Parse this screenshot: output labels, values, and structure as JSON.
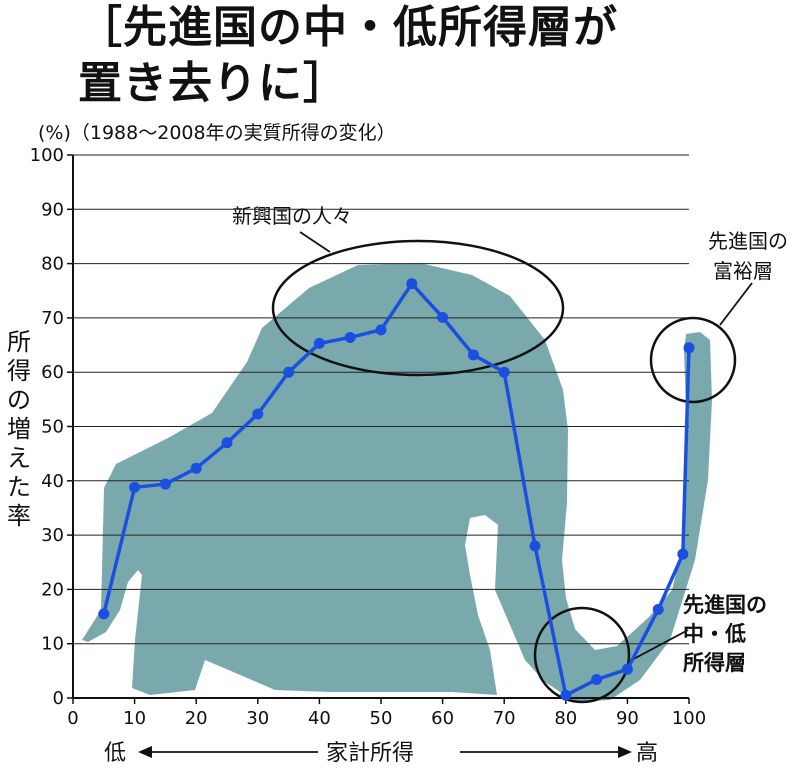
{
  "title_line1": "［先進国の中・低所得層が",
  "title_line2": "置き去りに］",
  "chart_data": {
    "type": "line",
    "subtitle": "(%)（1988～2008年の実質所得の変化）",
    "ylabel": "所得の増えた率",
    "xlabel": "家計所得",
    "x_low": "低",
    "x_high": "高",
    "xlim": [
      0,
      100
    ],
    "ylim": [
      0,
      100
    ],
    "xticks": [
      0,
      10,
      20,
      30,
      40,
      50,
      60,
      70,
      80,
      90,
      100
    ],
    "yticks": [
      0,
      10,
      20,
      30,
      40,
      50,
      60,
      70,
      80,
      90,
      100
    ],
    "grid": "horizontal",
    "x": [
      5,
      10,
      15,
      20,
      25,
      30,
      35,
      40,
      45,
      50,
      55,
      60,
      65,
      70,
      75,
      80,
      85,
      90,
      95,
      99,
      100
    ],
    "values": [
      15.5,
      38.8,
      39.4,
      42.3,
      47,
      52.3,
      60,
      65.3,
      66.4,
      67.8,
      76.3,
      70.1,
      63.2,
      60,
      28,
      0.5,
      3.4,
      5.3,
      16.3,
      26.5,
      64.5
    ],
    "annotations": [
      {
        "text": "新興国の人々",
        "x": 55,
        "y": 70
      },
      {
        "text": "先進国の富裕層",
        "x": 100,
        "y": 64.5
      },
      {
        "text": "先進国の中・低所得層",
        "x": 84,
        "y": 4
      }
    ],
    "line_color": "#1b4fe0",
    "shape_color": "#7aa9ad"
  }
}
